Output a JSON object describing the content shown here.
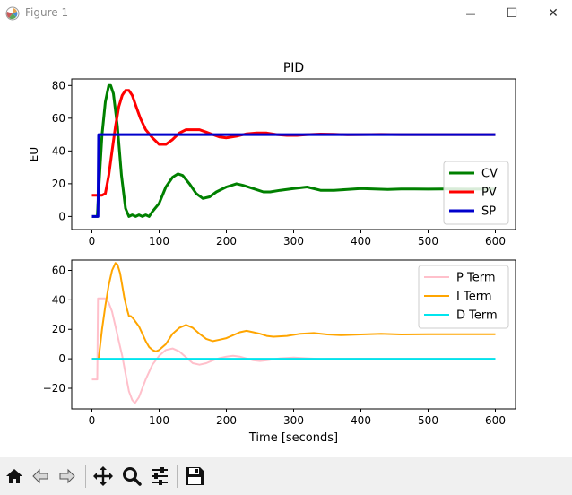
{
  "window": {
    "title": "Figure 1",
    "minimize_glyph": "—",
    "maximize_glyph": "☐",
    "close_glyph": "✕"
  },
  "toolbar": {
    "icons": [
      "home-icon",
      "back-arrow-icon",
      "forward-arrow-icon",
      "pan-move-icon",
      "zoom-magnifier-icon",
      "configure-subplots-icon",
      "save-floppy-icon"
    ]
  },
  "chart_data": [
    {
      "type": "line",
      "title": "PID",
      "xlabel": "",
      "ylabel": "EU",
      "xlim": [
        -30,
        630
      ],
      "ylim": [
        -8,
        84
      ],
      "xticks": [
        0,
        100,
        200,
        300,
        400,
        500,
        600
      ],
      "yticks": [
        0,
        20,
        40,
        60,
        80
      ],
      "grid": false,
      "legend_position": "lower-right",
      "series": [
        {
          "name": "CV",
          "color": "#008000",
          "points": [
            [
              0,
              0
            ],
            [
              5,
              0
            ],
            [
              8,
              0
            ],
            [
              10,
              15
            ],
            [
              15,
              50
            ],
            [
              20,
              70
            ],
            [
              25,
              80
            ],
            [
              28,
              80
            ],
            [
              32,
              75
            ],
            [
              38,
              55
            ],
            [
              44,
              25
            ],
            [
              50,
              5
            ],
            [
              55,
              0
            ],
            [
              60,
              1
            ],
            [
              65,
              0
            ],
            [
              70,
              1
            ],
            [
              75,
              0
            ],
            [
              80,
              1
            ],
            [
              85,
              0
            ],
            [
              90,
              3
            ],
            [
              100,
              8
            ],
            [
              110,
              18
            ],
            [
              120,
              24
            ],
            [
              128,
              26
            ],
            [
              135,
              25
            ],
            [
              145,
              20
            ],
            [
              155,
              14
            ],
            [
              165,
              11
            ],
            [
              175,
              12
            ],
            [
              185,
              15
            ],
            [
              200,
              18
            ],
            [
              215,
              20
            ],
            [
              225,
              19
            ],
            [
              240,
              17
            ],
            [
              255,
              15
            ],
            [
              265,
              15
            ],
            [
              280,
              16
            ],
            [
              300,
              17
            ],
            [
              320,
              18
            ],
            [
              340,
              16
            ],
            [
              360,
              16
            ],
            [
              380,
              16.5
            ],
            [
              400,
              17
            ],
            [
              420,
              16.8
            ],
            [
              440,
              16.5
            ],
            [
              460,
              16.8
            ],
            [
              480,
              16.8
            ],
            [
              500,
              16.7
            ],
            [
              520,
              16.8
            ],
            [
              540,
              16.8
            ],
            [
              560,
              16.7
            ],
            [
              580,
              16.8
            ],
            [
              600,
              16.7
            ]
          ]
        },
        {
          "name": "PV",
          "color": "#ff0000",
          "points": [
            [
              0,
              13
            ],
            [
              10,
              13
            ],
            [
              15,
              13
            ],
            [
              20,
              14
            ],
            [
              25,
              25
            ],
            [
              30,
              40
            ],
            [
              35,
              55
            ],
            [
              40,
              67
            ],
            [
              45,
              74
            ],
            [
              50,
              77
            ],
            [
              55,
              77
            ],
            [
              60,
              74
            ],
            [
              65,
              68
            ],
            [
              72,
              60
            ],
            [
              80,
              53
            ],
            [
              90,
              48
            ],
            [
              100,
              44
            ],
            [
              110,
              44
            ],
            [
              120,
              47
            ],
            [
              130,
              51
            ],
            [
              140,
              53
            ],
            [
              150,
              53
            ],
            [
              160,
              53
            ],
            [
              170,
              51.5
            ],
            [
              180,
              50
            ],
            [
              190,
              48.5
            ],
            [
              200,
              48
            ],
            [
              215,
              49
            ],
            [
              230,
              50.5
            ],
            [
              245,
              51
            ],
            [
              260,
              51
            ],
            [
              275,
              50
            ],
            [
              290,
              49.5
            ],
            [
              305,
              49.5
            ],
            [
              320,
              50
            ],
            [
              340,
              50.3
            ],
            [
              360,
              50.2
            ],
            [
              380,
              49.9
            ],
            [
              400,
              50
            ],
            [
              430,
              50.1
            ],
            [
              460,
              50
            ],
            [
              500,
              50
            ],
            [
              550,
              50
            ],
            [
              600,
              50
            ]
          ]
        },
        {
          "name": "SP",
          "color": "#0000cc",
          "points": [
            [
              0,
              0
            ],
            [
              9,
              0
            ],
            [
              10,
              50
            ],
            [
              600,
              50
            ]
          ]
        }
      ]
    },
    {
      "type": "line",
      "title": "",
      "xlabel": "Time [seconds]",
      "ylabel": "",
      "xlim": [
        -30,
        630
      ],
      "ylim": [
        -34,
        67
      ],
      "xticks": [
        0,
        100,
        200,
        300,
        400,
        500,
        600
      ],
      "yticks": [
        -20,
        0,
        20,
        40,
        60
      ],
      "grid": false,
      "legend_position": "upper-right",
      "series": [
        {
          "name": "P Term",
          "color": "#ffc0cb",
          "points": [
            [
              0,
              -14
            ],
            [
              8,
              -14
            ],
            [
              9,
              41
            ],
            [
              20,
              41
            ],
            [
              25,
              38
            ],
            [
              30,
              32
            ],
            [
              35,
              22
            ],
            [
              40,
              12
            ],
            [
              45,
              2
            ],
            [
              50,
              -10
            ],
            [
              55,
              -22
            ],
            [
              60,
              -28
            ],
            [
              64,
              -30
            ],
            [
              70,
              -26
            ],
            [
              80,
              -14
            ],
            [
              90,
              -4
            ],
            [
              100,
              2
            ],
            [
              110,
              6
            ],
            [
              120,
              7
            ],
            [
              130,
              5
            ],
            [
              140,
              1
            ],
            [
              150,
              -3
            ],
            [
              160,
              -4
            ],
            [
              170,
              -3
            ],
            [
              180,
              -1
            ],
            [
              190,
              0.5
            ],
            [
              200,
              1.5
            ],
            [
              210,
              2
            ],
            [
              220,
              1.5
            ],
            [
              230,
              0.2
            ],
            [
              240,
              -1
            ],
            [
              250,
              -1.5
            ],
            [
              260,
              -1
            ],
            [
              270,
              -0.3
            ],
            [
              280,
              0.3
            ],
            [
              300,
              0.8
            ],
            [
              320,
              0.3
            ],
            [
              340,
              -0.2
            ],
            [
              360,
              0
            ],
            [
              400,
              0.1
            ],
            [
              450,
              0
            ],
            [
              500,
              0
            ],
            [
              600,
              0
            ]
          ]
        },
        {
          "name": "I Term",
          "color": "#ffa500",
          "points": [
            [
              0,
              0
            ],
            [
              8,
              0
            ],
            [
              10,
              0
            ],
            [
              15,
              20
            ],
            [
              20,
              36
            ],
            [
              25,
              50
            ],
            [
              30,
              60
            ],
            [
              35,
              65
            ],
            [
              38,
              64
            ],
            [
              42,
              58
            ],
            [
              48,
              42
            ],
            [
              52,
              34
            ],
            [
              55,
              29
            ],
            [
              58,
              29
            ],
            [
              62,
              27
            ],
            [
              65,
              25
            ],
            [
              70,
              22
            ],
            [
              75,
              17
            ],
            [
              80,
              12
            ],
            [
              85,
              8
            ],
            [
              90,
              6
            ],
            [
              95,
              5
            ],
            [
              100,
              6
            ],
            [
              110,
              10
            ],
            [
              120,
              17
            ],
            [
              130,
              21
            ],
            [
              140,
              23
            ],
            [
              150,
              21
            ],
            [
              160,
              17
            ],
            [
              170,
              13.5
            ],
            [
              180,
              12
            ],
            [
              190,
              13
            ],
            [
              200,
              14
            ],
            [
              210,
              16
            ],
            [
              220,
              18
            ],
            [
              230,
              19
            ],
            [
              240,
              18
            ],
            [
              250,
              17
            ],
            [
              260,
              15.5
            ],
            [
              270,
              15
            ],
            [
              290,
              15.5
            ],
            [
              310,
              17
            ],
            [
              330,
              17.5
            ],
            [
              350,
              16.5
            ],
            [
              370,
              16
            ],
            [
              400,
              16.5
            ],
            [
              430,
              17
            ],
            [
              460,
              16.5
            ],
            [
              500,
              16.7
            ],
            [
              550,
              16.7
            ],
            [
              600,
              16.6
            ]
          ]
        },
        {
          "name": "D Term",
          "color": "#00e5ee",
          "points": [
            [
              0,
              0
            ],
            [
              100,
              0
            ],
            [
              200,
              0
            ],
            [
              300,
              0
            ],
            [
              400,
              0
            ],
            [
              500,
              0
            ],
            [
              600,
              0
            ]
          ]
        }
      ]
    }
  ]
}
